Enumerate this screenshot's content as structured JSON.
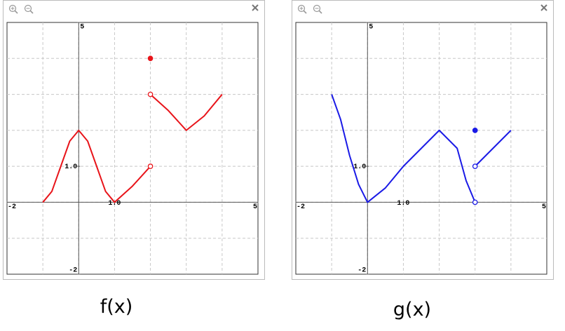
{
  "chart_data": [
    {
      "type": "line",
      "title": "f(x)",
      "xlim": [
        -2,
        5
      ],
      "ylim": [
        -2,
        5
      ],
      "xticks": [
        -2,
        {
          "value": 1,
          "label": "1.0"
        },
        5
      ],
      "yticks": [
        5,
        {
          "value": 1,
          "label": "1.0"
        },
        -2
      ],
      "xgrid": [
        -1,
        0,
        1,
        2,
        3,
        4
      ],
      "ygrid": [
        -1,
        0,
        1,
        2,
        3,
        4
      ],
      "series": [
        {
          "color": "#e8141a",
          "x": [
            -1,
            -0.75,
            -0.5,
            -0.25,
            0,
            0.25,
            0.5,
            0.75,
            1,
            1.5,
            2,
            2,
            2,
            2.5,
            3,
            3.5,
            4
          ],
          "values": [
            0,
            0.3,
            1,
            1.7,
            2,
            1.7,
            1,
            0.3,
            0,
            0.45,
            1,
            null,
            3,
            2.55,
            2,
            2.4,
            3
          ]
        }
      ],
      "points": {
        "color": "#e8141a",
        "x": [
          2,
          2,
          2
        ],
        "y": [
          1,
          3,
          4
        ],
        "filled": [
          false,
          false,
          true
        ]
      }
    },
    {
      "type": "line",
      "title": "g(x)",
      "xlim": [
        -2,
        5
      ],
      "ylim": [
        -2,
        5
      ],
      "xticks": [
        -2,
        {
          "value": 1,
          "label": "1.0"
        },
        5
      ],
      "yticks": [
        5,
        {
          "value": 1,
          "label": "1.0"
        },
        -2
      ],
      "xgrid": [
        -1,
        0,
        1,
        2,
        3,
        4
      ],
      "ygrid": [
        -1,
        0,
        1,
        2,
        3,
        4
      ],
      "series": [
        {
          "color": "#1a1ae6",
          "x": [
            -1,
            -0.75,
            -0.5,
            -0.25,
            0,
            0.5,
            1,
            1.5,
            2,
            2.5,
            2.75,
            3,
            3,
            3,
            4
          ],
          "values": [
            3,
            2.3,
            1.3,
            0.5,
            0,
            0.4,
            1,
            1.5,
            2,
            1.5,
            0.6,
            0,
            null,
            1,
            2
          ]
        }
      ],
      "points": {
        "color": "#1a1ae6",
        "x": [
          3,
          3,
          3
        ],
        "y": [
          0,
          1,
          2
        ],
        "filled": [
          false,
          false,
          true
        ]
      }
    }
  ]
}
